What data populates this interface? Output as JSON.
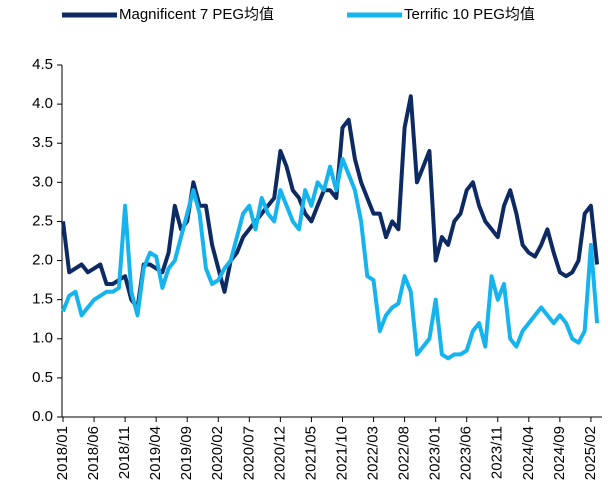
{
  "chart_data": {
    "type": "line",
    "categories": [
      "2018/01",
      null,
      null,
      null,
      null,
      "2018/06",
      null,
      null,
      null,
      null,
      "2018/11",
      null,
      null,
      null,
      null,
      "2019/04",
      null,
      null,
      null,
      null,
      "2019/09",
      null,
      null,
      null,
      null,
      "2020/02",
      null,
      null,
      null,
      null,
      "2020/07",
      null,
      null,
      null,
      null,
      "2020/12",
      null,
      null,
      null,
      null,
      "2021/05",
      null,
      null,
      null,
      null,
      "2021/10",
      null,
      null,
      null,
      null,
      "2022/03",
      null,
      null,
      null,
      null,
      "2022/08",
      null,
      null,
      null,
      null,
      "2023/01",
      null,
      null,
      null,
      null,
      "2023/06",
      null,
      null,
      null,
      null,
      "2023/11",
      null,
      null,
      null,
      null,
      "2024/04",
      null,
      null,
      null,
      null,
      "2024/09",
      null,
      null,
      null,
      null,
      "2025/02",
      null
    ],
    "series": [
      {
        "name": "Magnificent 7 PEG均值",
        "color": "#0d2a63",
        "values": [
          2.5,
          1.85,
          1.9,
          1.95,
          1.85,
          1.9,
          1.95,
          1.7,
          1.7,
          1.75,
          1.8,
          1.5,
          1.4,
          1.95,
          1.95,
          1.9,
          1.85,
          2.1,
          2.7,
          2.4,
          2.5,
          3.0,
          2.7,
          2.7,
          2.2,
          1.9,
          1.6,
          2.0,
          2.1,
          2.3,
          2.4,
          2.5,
          2.6,
          2.7,
          2.8,
          3.4,
          3.2,
          2.9,
          2.8,
          2.6,
          2.5,
          2.7,
          2.9,
          2.9,
          2.8,
          3.7,
          3.8,
          3.3,
          3.0,
          2.8,
          2.6,
          2.6,
          2.3,
          2.5,
          2.4,
          3.7,
          4.1,
          3.0,
          3.2,
          3.4,
          2.0,
          2.3,
          2.2,
          2.5,
          2.6,
          2.9,
          3.0,
          2.7,
          2.5,
          2.4,
          2.3,
          2.7,
          2.9,
          2.6,
          2.2,
          2.1,
          2.05,
          2.2,
          2.4,
          2.1,
          1.85,
          1.8,
          1.85,
          2.0,
          2.6,
          2.7,
          1.95
        ]
      },
      {
        "name": "Terrific 10 PEG均值",
        "color": "#16b4ee",
        "values": [
          1.35,
          1.55,
          1.6,
          1.3,
          1.4,
          1.5,
          1.55,
          1.6,
          1.6,
          1.65,
          2.7,
          1.6,
          1.3,
          1.9,
          2.1,
          2.05,
          1.65,
          1.9,
          2.0,
          2.3,
          2.6,
          2.9,
          2.6,
          1.9,
          1.7,
          1.75,
          1.9,
          2.0,
          2.3,
          2.6,
          2.7,
          2.4,
          2.8,
          2.6,
          2.5,
          2.9,
          2.7,
          2.5,
          2.4,
          2.9,
          2.7,
          3.0,
          2.9,
          3.2,
          2.9,
          3.3,
          3.1,
          2.9,
          2.5,
          1.8,
          1.75,
          1.1,
          1.3,
          1.4,
          1.45,
          1.8,
          1.6,
          0.8,
          0.9,
          1.0,
          1.5,
          0.8,
          0.75,
          0.8,
          0.8,
          0.85,
          1.1,
          1.2,
          0.9,
          1.8,
          1.5,
          1.7,
          1.0,
          0.9,
          1.1,
          1.2,
          1.3,
          1.4,
          1.3,
          1.2,
          1.3,
          1.2,
          1.0,
          0.95,
          1.1,
          2.2,
          1.2
        ]
      }
    ],
    "ylim": [
      0,
      4.5
    ],
    "yticks": [
      {
        "value": 0,
        "label": "0.0"
      },
      {
        "value": 0.5,
        "label": "0.5"
      },
      {
        "value": 1,
        "label": "1.0"
      },
      {
        "value": 1.5,
        "label": "1.5"
      },
      {
        "value": 2,
        "label": "2.0"
      },
      {
        "value": 2.5,
        "label": "2.5"
      },
      {
        "value": 3,
        "label": "3.0"
      },
      {
        "value": 3.5,
        "label": "3.5"
      },
      {
        "value": 4,
        "label": "4.0"
      },
      {
        "value": 4.5,
        "label": "4.5"
      }
    ],
    "legend": "top"
  }
}
